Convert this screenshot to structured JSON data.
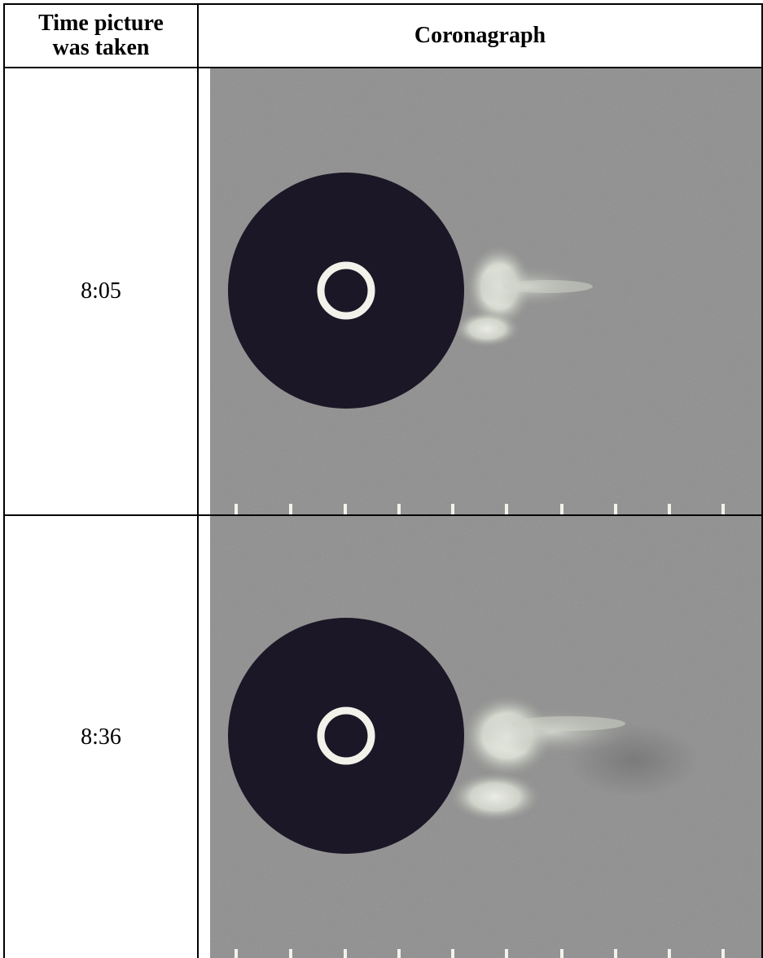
{
  "table": {
    "headers": {
      "time": "Time picture\nwas taken",
      "image": "Coronagraph"
    },
    "rows": [
      {
        "time": "8:05"
      },
      {
        "time": "8:36"
      }
    ]
  },
  "colors": {
    "background_gray": "#8a8a8a",
    "occulter": "#1c1726",
    "ring": "#f2f2ea",
    "cme_bright": "#eef2e8",
    "border": "#000000"
  }
}
